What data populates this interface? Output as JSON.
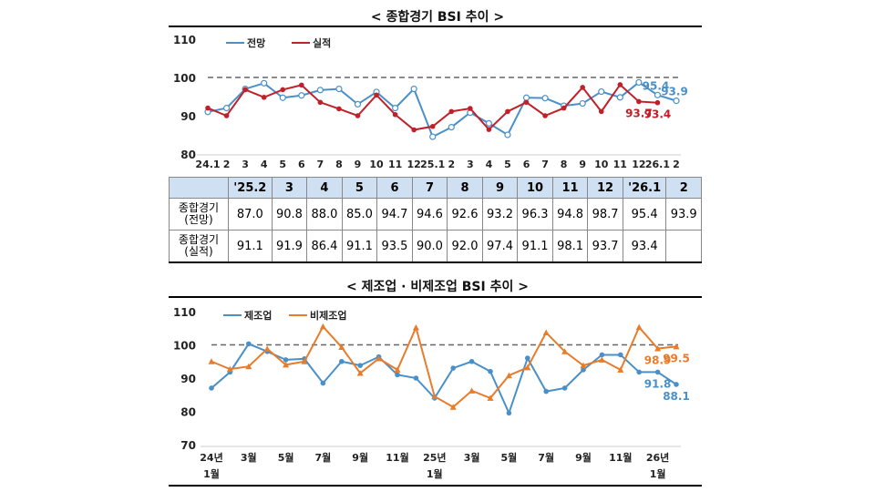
{
  "titles": {
    "top": "< 종합경기 BSI 추이 >",
    "bottom": "< 제조업 · 비제조업 BSI 추이 >"
  },
  "chart_data": [
    {
      "type": "line",
      "title": "< 종합경기 BSI 추이 >",
      "ylim": [
        80,
        110
      ],
      "yticks": [
        80,
        90,
        100,
        110
      ],
      "reference_line": 100,
      "x": [
        "24.1",
        "2",
        "3",
        "4",
        "5",
        "6",
        "7",
        "8",
        "9",
        "10",
        "11",
        "12",
        "25.1",
        "2",
        "3",
        "4",
        "5",
        "6",
        "7",
        "8",
        "9",
        "10",
        "11",
        "12",
        "26.1",
        "2"
      ],
      "series": [
        {
          "name": "전망",
          "color": "#4a90c8",
          "marker": "open-circle",
          "values": [
            91,
            92,
            97,
            98.5,
            94.7,
            95.3,
            96.7,
            97,
            93,
            96.2,
            92,
            97,
            84.5,
            87.0,
            90.8,
            88.0,
            85.0,
            94.7,
            94.6,
            92.6,
            93.2,
            96.3,
            94.8,
            98.7,
            95.4,
            93.9
          ]
        },
        {
          "name": "실적",
          "color": "#c0202a",
          "marker": "filled-diamond",
          "values": [
            92,
            90,
            96.8,
            94.8,
            96.8,
            98,
            93.5,
            91.8,
            90,
            95.4,
            90.3,
            86.3,
            87.2,
            91.1,
            91.9,
            86.4,
            91.1,
            93.5,
            90.0,
            92.0,
            97.4,
            91.1,
            98.1,
            93.7,
            93.4,
            null
          ]
        }
      ],
      "annotations": [
        {
          "series": "전망",
          "x": "26.1",
          "text": "95.4"
        },
        {
          "series": "전망",
          "x": "2",
          "text": "93.9"
        },
        {
          "series": "실적",
          "x": "12",
          "text": "93.7"
        },
        {
          "series": "실적",
          "x": "26.1",
          "text": "93.4"
        }
      ],
      "legend": "top-left"
    },
    {
      "type": "line",
      "title": "< 제조업 · 비제조업 BSI 추이 >",
      "ylim": [
        70,
        110
      ],
      "yticks": [
        70,
        80,
        90,
        100,
        110
      ],
      "reference_line": 100,
      "x": [
        "24년 1월",
        "2",
        "3월",
        "4",
        "5월",
        "6",
        "7월",
        "8",
        "9월",
        "10",
        "11월",
        "12",
        "25년 1월",
        "2",
        "3월",
        "4",
        "5월",
        "6",
        "7월",
        "8",
        "9월",
        "10",
        "11월",
        "12",
        "26년 1월",
        "2"
      ],
      "xtick_labels": [
        "24년\n1월",
        "3월",
        "5월",
        "7월",
        "9월",
        "11월",
        "25년\n1월",
        "3월",
        "5월",
        "7월",
        "9월",
        "11월",
        "26년\n1월"
      ],
      "series": [
        {
          "name": "제조업",
          "color": "#4a90c8",
          "values": [
            87,
            91.8,
            100.3,
            98,
            95.5,
            95.8,
            88.5,
            95,
            93.8,
            96.4,
            91,
            90,
            84,
            93,
            95,
            92,
            79.5,
            96,
            86,
            87,
            92.5,
            97,
            97,
            91.8,
            91.8,
            88.1
          ]
        },
        {
          "name": "비제조업",
          "color": "#e87c2a",
          "values": [
            95,
            92.7,
            93.5,
            98.8,
            94,
            95,
            105.5,
            99.3,
            91.5,
            95.9,
            92.5,
            105.2,
            84.5,
            81.3,
            86.2,
            84,
            90.8,
            93.2,
            103.7,
            98,
            93.8,
            95.5,
            92.5,
            105.3,
            98.9,
            99.5
          ]
        }
      ],
      "annotations": [
        {
          "series": "제조업",
          "x": "26년 1월",
          "text": "91.8"
        },
        {
          "series": "제조업",
          "x": "2",
          "text": "88.1"
        },
        {
          "series": "비제조업",
          "x": "26년 1월",
          "text": "98.9"
        },
        {
          "series": "비제조업",
          "x": "2",
          "text": "99.5"
        }
      ],
      "legend": "top-left"
    }
  ],
  "table": {
    "header": [
      "",
      "'25.2",
      "3",
      "4",
      "5",
      "6",
      "7",
      "8",
      "9",
      "10",
      "11",
      "12",
      "'26.1",
      "2"
    ],
    "rows": [
      {
        "label": "종합경기\n(전망)",
        "values": [
          "87.0",
          "90.8",
          "88.0",
          "85.0",
          "94.7",
          "94.6",
          "92.6",
          "93.2",
          "96.3",
          "94.8",
          "98.7",
          "95.4",
          "93.9"
        ]
      },
      {
        "label": "종합경기\n(실적)",
        "values": [
          "91.1",
          "91.9",
          "86.4",
          "91.1",
          "93.5",
          "90.0",
          "92.0",
          "97.4",
          "91.1",
          "98.1",
          "93.7",
          "93.4",
          ""
        ]
      }
    ]
  }
}
